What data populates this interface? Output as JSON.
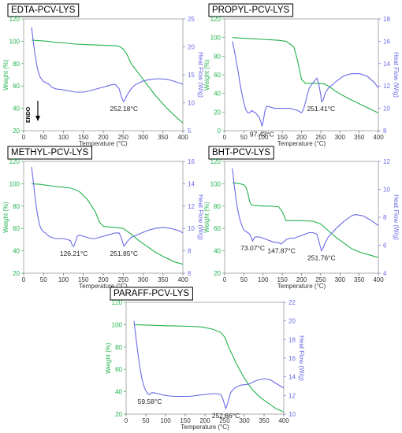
{
  "colors": {
    "weight": "#22b14c",
    "heat_flow": "#6a6ae6",
    "axis_text": "#333333",
    "title_border": "#000000"
  },
  "chart_data": [
    {
      "type": "line",
      "title": "EDTA-PCV-LYS",
      "xlabel": "Temperature (°C)",
      "ylabel": "Weight (%)",
      "y2label": "Heat Flow (W/g)",
      "xlim": [
        0,
        400
      ],
      "ylim": [
        20,
        120
      ],
      "y2lim": [
        5,
        25
      ],
      "xticks": [
        "0",
        "50",
        "100",
        "150",
        "200",
        "250",
        "300",
        "350",
        "400"
      ],
      "yticks": [
        "20",
        "40",
        "60",
        "80",
        "100",
        "120"
      ],
      "y2ticks": [
        "5",
        "10",
        "15",
        "20",
        "25"
      ],
      "endo_label": "ENDO",
      "annotations": [
        {
          "text": "252.18°C",
          "x": 252,
          "y2": 10.2
        }
      ],
      "series": [
        {
          "axis": "left",
          "x": [
            20,
            40,
            60,
            80,
            100,
            130,
            160,
            200,
            230,
            240,
            250,
            260,
            270,
            300,
            330,
            360,
            390,
            400
          ],
          "y": [
            101,
            100.5,
            100,
            99,
            98.5,
            97.5,
            97,
            96.5,
            96,
            95.5,
            93,
            88,
            80,
            66,
            52,
            40,
            30,
            27
          ]
        },
        {
          "axis": "right",
          "x": [
            20,
            25,
            30,
            35,
            40,
            45,
            50,
            55,
            60,
            65,
            70,
            80,
            90,
            100,
            110,
            130,
            150,
            170,
            190,
            200,
            210,
            220,
            230,
            240,
            245,
            250,
            252,
            255,
            260,
            270,
            280,
            300,
            320,
            340,
            360,
            380,
            400
          ],
          "y": [
            23.5,
            20.5,
            18,
            16,
            14.8,
            14.2,
            13.8,
            13.6,
            13.5,
            13.2,
            12.8,
            12.5,
            12.4,
            12.3,
            12.2,
            11.9,
            11.9,
            12.2,
            12.6,
            12.8,
            13,
            13.2,
            13.3,
            12.5,
            11.2,
            10.3,
            10.2,
            10.6,
            11.4,
            12.5,
            13.2,
            13.9,
            14.2,
            14.3,
            14.2,
            13.8,
            13.3
          ]
        }
      ]
    },
    {
      "type": "line",
      "title": "PROPYL-PCV-LYS",
      "xlabel": "Temperature (°C)",
      "ylabel": "Weight (%)",
      "y2label": "Heat Flow (W/g)",
      "xlim": [
        0,
        400
      ],
      "ylim": [
        0,
        120
      ],
      "y2lim": [
        8,
        18
      ],
      "xticks": [
        "0",
        "50",
        "100",
        "150",
        "200",
        "250",
        "300",
        "350",
        "400"
      ],
      "yticks": [
        "0",
        "20",
        "40",
        "60",
        "80",
        "100",
        "120"
      ],
      "y2ticks": [
        "8",
        "10",
        "12",
        "14",
        "16",
        "18"
      ],
      "annotations": [
        {
          "text": "97.43°C",
          "x": 97,
          "y2": 8.3
        },
        {
          "text": "251.41°C",
          "x": 251,
          "y2": 10.6
        }
      ],
      "series": [
        {
          "axis": "left",
          "x": [
            20,
            40,
            60,
            80,
            100,
            120,
            140,
            160,
            180,
            190,
            200,
            210,
            230,
            250,
            260,
            270,
            290,
            320,
            350,
            380,
            400
          ],
          "y": [
            100,
            99.5,
            99,
            98.5,
            98,
            97.5,
            97,
            96,
            90,
            75,
            55,
            51,
            51,
            50.5,
            50,
            48,
            42,
            35,
            29,
            23,
            19
          ]
        },
        {
          "axis": "right",
          "x": [
            20,
            25,
            30,
            35,
            40,
            45,
            50,
            55,
            60,
            65,
            70,
            80,
            90,
            95,
            97,
            100,
            105,
            110,
            120,
            130,
            150,
            170,
            190,
            200,
            205,
            210,
            215,
            220,
            230,
            240,
            245,
            250,
            252,
            256,
            262,
            270,
            290,
            310,
            330,
            350,
            370,
            390,
            400
          ],
          "y": [
            16,
            15.2,
            14.3,
            13.3,
            12.2,
            11.3,
            10.5,
            9.9,
            9.6,
            9.6,
            9.8,
            9.6,
            9.2,
            8.7,
            8.4,
            8.8,
            9.8,
            10.2,
            10.1,
            10,
            10,
            10,
            9.8,
            9.6,
            9.9,
            10.5,
            11.2,
            11.8,
            12.3,
            12.7,
            12.2,
            11.2,
            10.6,
            10.7,
            11.4,
            11.8,
            12.4,
            12.9,
            13.1,
            13.1,
            12.9,
            12.3,
            11.8
          ]
        }
      ]
    },
    {
      "type": "line",
      "title": "METHYL-PCV-LYS",
      "xlabel": "Temperature (°C)",
      "ylabel": "Weight (%)",
      "y2label": "Heat Flow (W/g)",
      "xlim": [
        0,
        400
      ],
      "ylim": [
        20,
        120
      ],
      "y2lim": [
        6,
        16
      ],
      "xticks": [
        "0",
        "50",
        "100",
        "150",
        "200",
        "250",
        "300",
        "350",
        "400"
      ],
      "yticks": [
        "20",
        "40",
        "60",
        "80",
        "100",
        "120"
      ],
      "y2ticks": [
        "6",
        "8",
        "10",
        "12",
        "14",
        "16"
      ],
      "annotations": [
        {
          "text": "126.21°C",
          "x": 126,
          "y2": 8.4
        },
        {
          "text": "251.85°C",
          "x": 252,
          "y2": 8.4
        }
      ],
      "series": [
        {
          "axis": "left",
          "x": [
            20,
            40,
            60,
            80,
            100,
            120,
            140,
            160,
            180,
            190,
            200,
            210,
            230,
            250,
            270,
            290,
            310,
            330,
            350,
            380,
            400
          ],
          "y": [
            100,
            99.5,
            98.5,
            97.5,
            97,
            96,
            93,
            86,
            75,
            66,
            62,
            61.5,
            61,
            60,
            55,
            49,
            44,
            39,
            35,
            30,
            28
          ]
        },
        {
          "axis": "right",
          "x": [
            20,
            25,
            30,
            35,
            40,
            45,
            50,
            55,
            60,
            70,
            80,
            90,
            100,
            110,
            118,
            122,
            126,
            130,
            135,
            140,
            150,
            160,
            170,
            180,
            190,
            200,
            210,
            220,
            230,
            240,
            245,
            250,
            252,
            256,
            262,
            270,
            290,
            310,
            330,
            350,
            370,
            390,
            400
          ],
          "y": [
            15.5,
            14,
            12.4,
            11.2,
            10.3,
            9.9,
            9.7,
            9.6,
            9.4,
            9.2,
            9.1,
            9.1,
            9.1,
            9,
            8.9,
            8.5,
            8.4,
            8.8,
            9.3,
            9.4,
            9.3,
            9.2,
            9.1,
            9.1,
            9.2,
            9.3,
            9.4,
            9.5,
            9.6,
            9.6,
            9.2,
            8.6,
            8.4,
            8.6,
            8.9,
            9.2,
            9.5,
            9.8,
            10,
            10.1,
            10,
            9.8,
            9.6
          ]
        }
      ]
    },
    {
      "type": "line",
      "title": "BHT-PCV-LYS",
      "xlabel": "Temperature (°C)",
      "ylabel": "Weight (%)",
      "y2label": "Heat Flow (W/g)",
      "xlim": [
        0,
        400
      ],
      "ylim": [
        20,
        120
      ],
      "y2lim": [
        4,
        12
      ],
      "xticks": [
        "0",
        "50",
        "100",
        "150",
        "200",
        "250",
        "300",
        "350",
        "400"
      ],
      "yticks": [
        "20",
        "40",
        "60",
        "80",
        "100",
        "120"
      ],
      "y2ticks": [
        "4",
        "6",
        "8",
        "10",
        "12"
      ],
      "annotations": [
        {
          "text": "73.07°C",
          "x": 73,
          "y2": 6.3
        },
        {
          "text": "147.87°C",
          "x": 148,
          "y2": 6.1
        },
        {
          "text": "251.76°C",
          "x": 252,
          "y2": 5.6
        }
      ],
      "series": [
        {
          "axis": "left",
          "x": [
            20,
            30,
            40,
            50,
            55,
            60,
            65,
            70,
            80,
            100,
            120,
            140,
            150,
            160,
            200,
            230,
            250,
            270,
            290,
            310,
            330,
            350,
            380,
            400
          ],
          "y": [
            101,
            100.5,
            100,
            99,
            97,
            92,
            84,
            81,
            80.5,
            80,
            80,
            79.5,
            75,
            67,
            67,
            66.5,
            64,
            58,
            52,
            47,
            42,
            39,
            36,
            34
          ]
        },
        {
          "axis": "right",
          "x": [
            20,
            25,
            30,
            35,
            40,
            45,
            50,
            55,
            60,
            65,
            70,
            73,
            76,
            80,
            90,
            100,
            110,
            120,
            130,
            140,
            145,
            148,
            152,
            160,
            170,
            180,
            190,
            200,
            210,
            220,
            230,
            240,
            245,
            250,
            252,
            256,
            262,
            270,
            290,
            310,
            330,
            340,
            360,
            380,
            400
          ],
          "y": [
            11.5,
            10.3,
            9.2,
            8.4,
            7.8,
            7.4,
            7.1,
            7,
            6.9,
            6.8,
            6.5,
            6.3,
            6.5,
            6.6,
            6.6,
            6.5,
            6.4,
            6.3,
            6.2,
            6.2,
            6.1,
            6.1,
            6.2,
            6.4,
            6.5,
            6.5,
            6.6,
            6.7,
            6.8,
            6.9,
            6.9,
            6.8,
            6.3,
            5.8,
            5.6,
            5.8,
            6.2,
            6.6,
            7.2,
            7.7,
            8.1,
            8.2,
            8.1,
            7.8,
            7.4
          ]
        }
      ]
    },
    {
      "type": "line",
      "title": "PARAFF-PCV-LYS",
      "xlabel": "Temperature (°C)",
      "ylabel": "Weight (%)",
      "y2label": "Heat Flow (W/g)",
      "xlim": [
        0,
        400
      ],
      "ylim": [
        20,
        120
      ],
      "y2lim": [
        10,
        22
      ],
      "xticks": [
        "0",
        "50",
        "100",
        "150",
        "200",
        "250",
        "300",
        "350",
        "400"
      ],
      "yticks": [
        "20",
        "40",
        "60",
        "80",
        "100",
        "120"
      ],
      "y2ticks": [
        "10",
        "12",
        "14",
        "16",
        "18",
        "20",
        "22"
      ],
      "annotations": [
        {
          "text": "59.58°C",
          "x": 60,
          "y2": 12.1
        },
        {
          "text": "252.86°C",
          "x": 253,
          "y2": 10.6
        }
      ],
      "series": [
        {
          "axis": "left",
          "x": [
            20,
            40,
            60,
            80,
            100,
            130,
            160,
            190,
            220,
            240,
            250,
            260,
            280,
            300,
            320,
            340,
            360,
            380,
            400
          ],
          "y": [
            100,
            99.8,
            99.5,
            99.3,
            99,
            98.8,
            98.5,
            98,
            96,
            93,
            89,
            80,
            65,
            52,
            42,
            35,
            30,
            25,
            22
          ]
        },
        {
          "axis": "right",
          "x": [
            20,
            25,
            30,
            35,
            40,
            45,
            50,
            55,
            58,
            60,
            65,
            70,
            80,
            100,
            120,
            140,
            160,
            180,
            200,
            220,
            230,
            240,
            245,
            250,
            253,
            258,
            265,
            275,
            290,
            310,
            330,
            350,
            365,
            380,
            400
          ],
          "y": [
            20,
            18.2,
            16.5,
            15,
            13.8,
            13,
            12.5,
            12.2,
            12.1,
            12.1,
            12.3,
            12.3,
            12.2,
            12,
            11.9,
            11.9,
            11.9,
            12,
            12.1,
            12.2,
            12.2,
            12.1,
            11.7,
            11,
            10.6,
            11.2,
            12.3,
            12.8,
            13.1,
            13.2,
            13.6,
            13.8,
            13.7,
            13.3,
            12.8
          ]
        }
      ]
    }
  ]
}
